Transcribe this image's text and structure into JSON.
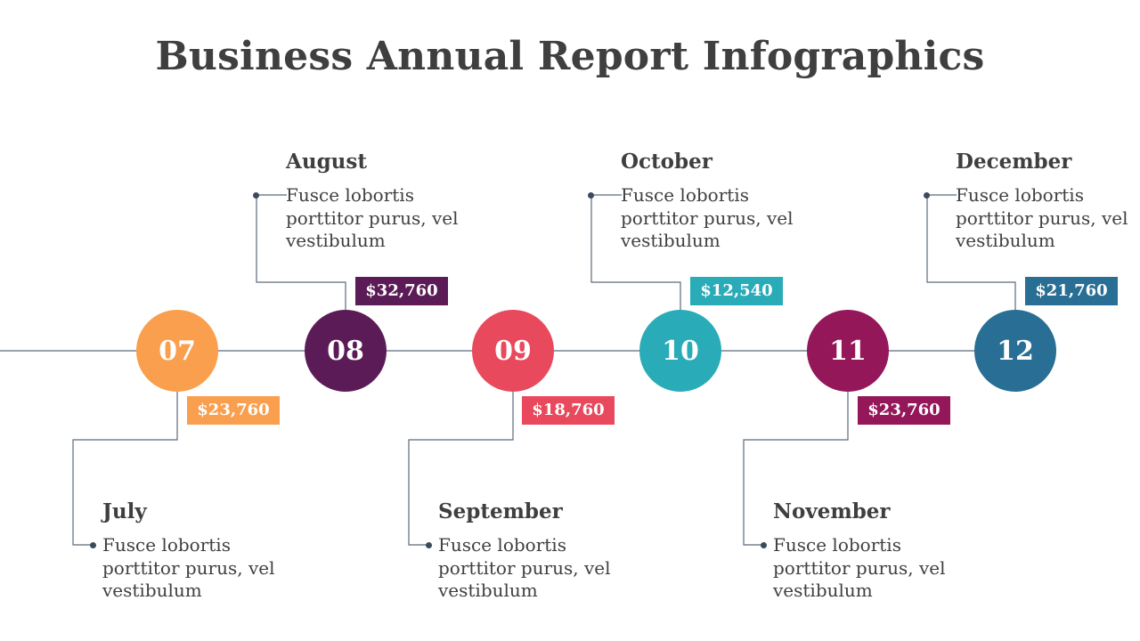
{
  "title": "Business Annual Report Infographics",
  "colors": {
    "line": "#5b6b7c",
    "dot": "#3b4a5e"
  },
  "timeline": [
    {
      "number": "07",
      "month": "July",
      "amount": "$23,760",
      "description": "Fusce lobortis porttitor purus, vel vestibulum",
      "color": "#f99f4e",
      "position": "below"
    },
    {
      "number": "08",
      "month": "August",
      "amount": "$32,760",
      "description": "Fusce lobortis porttitor purus, vel vestibulum",
      "color": "#5b1b57",
      "position": "above"
    },
    {
      "number": "09",
      "month": "September",
      "amount": "$18,760",
      "description": "Fusce lobortis porttitor purus, vel vestibulum",
      "color": "#e8495c",
      "position": "below"
    },
    {
      "number": "10",
      "month": "October",
      "amount": "$12,540",
      "description": "Fusce lobortis porttitor purus, vel vestibulum",
      "color": "#2aabb8",
      "position": "above"
    },
    {
      "number": "11",
      "month": "November",
      "amount": "$23,760",
      "description": "Fusce lobortis porttitor purus, vel vestibulum",
      "color": "#94175a",
      "position": "below"
    },
    {
      "number": "12",
      "month": "December",
      "amount": "$21,760",
      "description": "Fusce lobortis porttitor purus, vel vestibulum",
      "color": "#296e94",
      "position": "above"
    }
  ]
}
